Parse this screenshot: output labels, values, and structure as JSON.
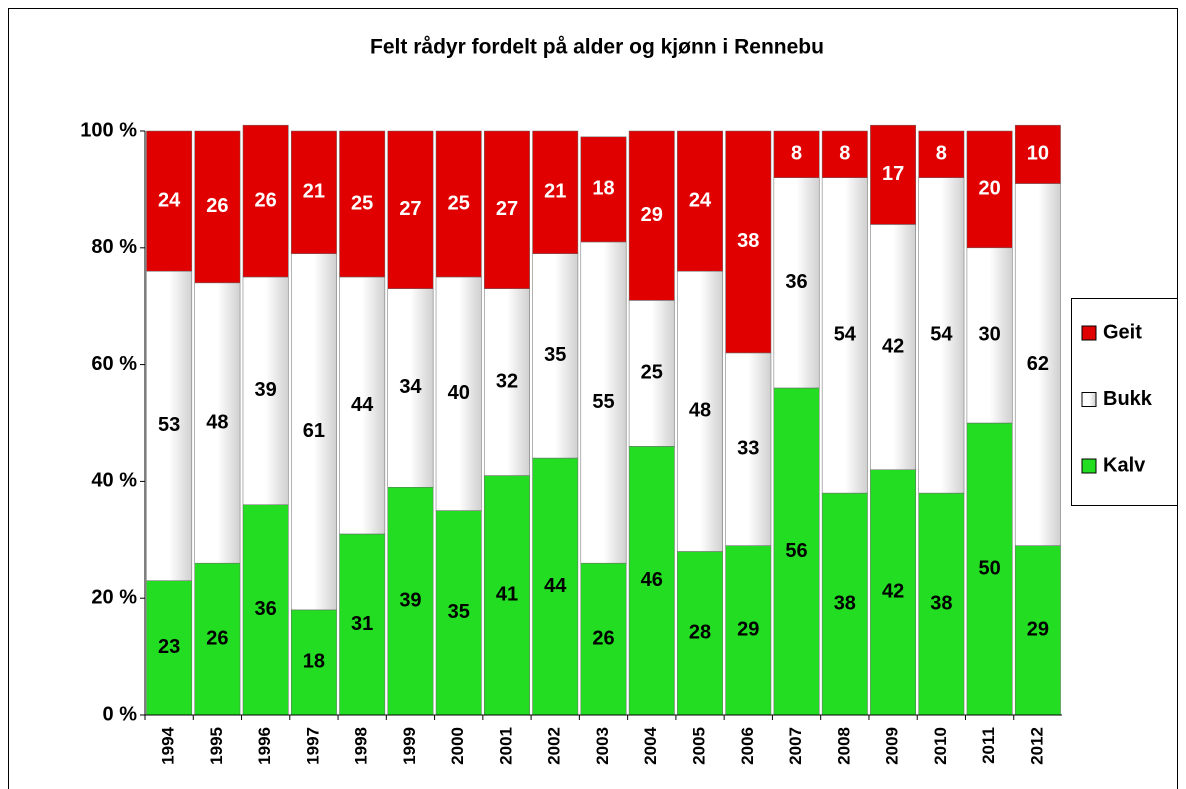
{
  "chart_data": {
    "type": "bar",
    "stacked": true,
    "title": "Felt rådyr fordelt på alder og kjønn i Rennebu",
    "categories": [
      "1994",
      "1995",
      "1996",
      "1997",
      "1998",
      "1999",
      "2000",
      "2001",
      "2002",
      "2003",
      "2004",
      "2005",
      "2006",
      "2007",
      "2008",
      "2009",
      "2010",
      "2011",
      "2012"
    ],
    "series": [
      {
        "name": "Kalv",
        "color": "#22dd22",
        "label_color": "#000000",
        "values": [
          23,
          26,
          36,
          18,
          31,
          39,
          35,
          41,
          44,
          26,
          46,
          28,
          29,
          56,
          38,
          42,
          38,
          50,
          29
        ]
      },
      {
        "name": "Bukk",
        "color": "#e8e8e8",
        "label_color": "#000000",
        "values": [
          53,
          48,
          39,
          61,
          44,
          34,
          40,
          32,
          35,
          55,
          25,
          48,
          33,
          36,
          54,
          42,
          54,
          30,
          62
        ]
      },
      {
        "name": "Geit",
        "color": "#e00000",
        "label_color": "#ffffff",
        "values": [
          24,
          26,
          26,
          21,
          25,
          27,
          25,
          27,
          21,
          18,
          29,
          24,
          38,
          8,
          8,
          17,
          8,
          20,
          10
        ]
      }
    ],
    "ylim": [
      0,
      100
    ],
    "yticks": [
      {
        "value": 0,
        "label": "0 %"
      },
      {
        "value": 20,
        "label": "20 %"
      },
      {
        "value": 40,
        "label": "40 %"
      },
      {
        "value": 60,
        "label": "60 %"
      },
      {
        "value": 80,
        "label": "80 %"
      },
      {
        "value": 100,
        "label": "100 %"
      }
    ],
    "legend": "right"
  }
}
